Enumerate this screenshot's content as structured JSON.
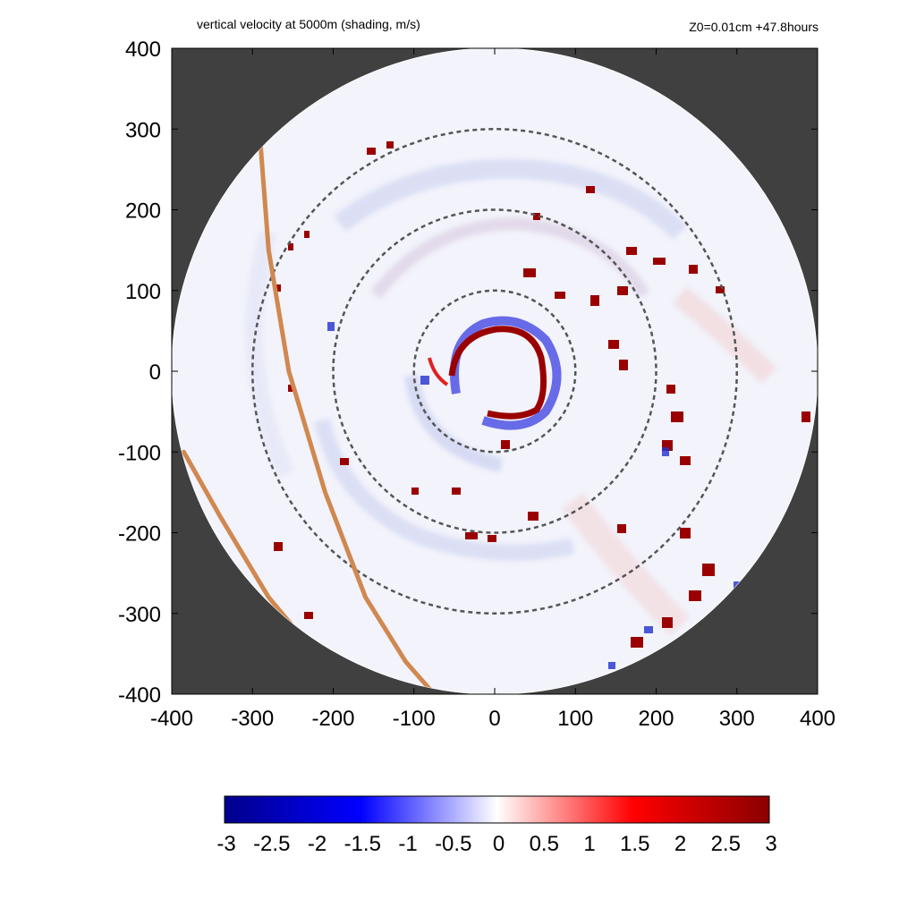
{
  "header": {
    "title": "vertical velocity at 5000m (shading, m/s)",
    "run_info": "Z0=0.01cm  +47.8hours"
  },
  "colors": {
    "background_outside_domain": "#404040",
    "negative_max": "#00008b",
    "negative_mid": "#0000ff",
    "zero": "#ffffff",
    "positive_mid": "#ff0000",
    "positive_max": "#8b0000",
    "track_line": "#d08850",
    "range_rings": "#555555"
  },
  "chart_data": {
    "type": "heatmap",
    "title": "vertical velocity at 5000m (shading, m/s)",
    "xlabel": "",
    "ylabel": "",
    "xlim": [
      -400,
      400
    ],
    "ylim": [
      -400,
      400
    ],
    "x_ticks": [
      "-400",
      "-300",
      "-200",
      "-100",
      "0",
      "100",
      "200",
      "300",
      "400"
    ],
    "y_ticks": [
      "400",
      "300",
      "200",
      "100",
      "0",
      "-100",
      "-200",
      "-300",
      "-400"
    ],
    "domain_radius": 400,
    "range_rings": [
      100,
      200,
      300
    ],
    "colorbar": {
      "min": -3,
      "max": 3,
      "ticks": [
        "-3",
        "-2.5",
        "-2",
        "-1.5",
        "-1",
        "-0.5",
        "0",
        "0.5",
        "1",
        "1.5",
        "2",
        "2.5",
        "3"
      ]
    },
    "features": [
      {
        "name": "eyewall_updraft",
        "x": 30,
        "y": -5,
        "radius": 55,
        "value": 3
      },
      {
        "name": "inner_downdraft_ring",
        "x": 25,
        "y": 10,
        "radius": 65,
        "value": -2.5
      },
      {
        "name": "rainband_east_upper",
        "x": 200,
        "y": 80,
        "value": 3
      },
      {
        "name": "rainband_southeast",
        "x": 230,
        "y": -100,
        "value": 3
      },
      {
        "name": "rainband_far_southeast",
        "x": 260,
        "y": -260,
        "value": 3
      }
    ],
    "track_lines": [
      {
        "points": [
          [
            -290,
            280
          ],
          [
            -280,
            150
          ],
          [
            -255,
            0
          ],
          [
            -210,
            -150
          ],
          [
            -160,
            -280
          ],
          [
            -110,
            -360
          ],
          [
            -75,
            -400
          ]
        ]
      },
      {
        "points": [
          [
            -385,
            -100
          ],
          [
            -340,
            -180
          ],
          [
            -280,
            -280
          ],
          [
            -230,
            -340
          ],
          [
            -200,
            -370
          ]
        ]
      }
    ]
  }
}
